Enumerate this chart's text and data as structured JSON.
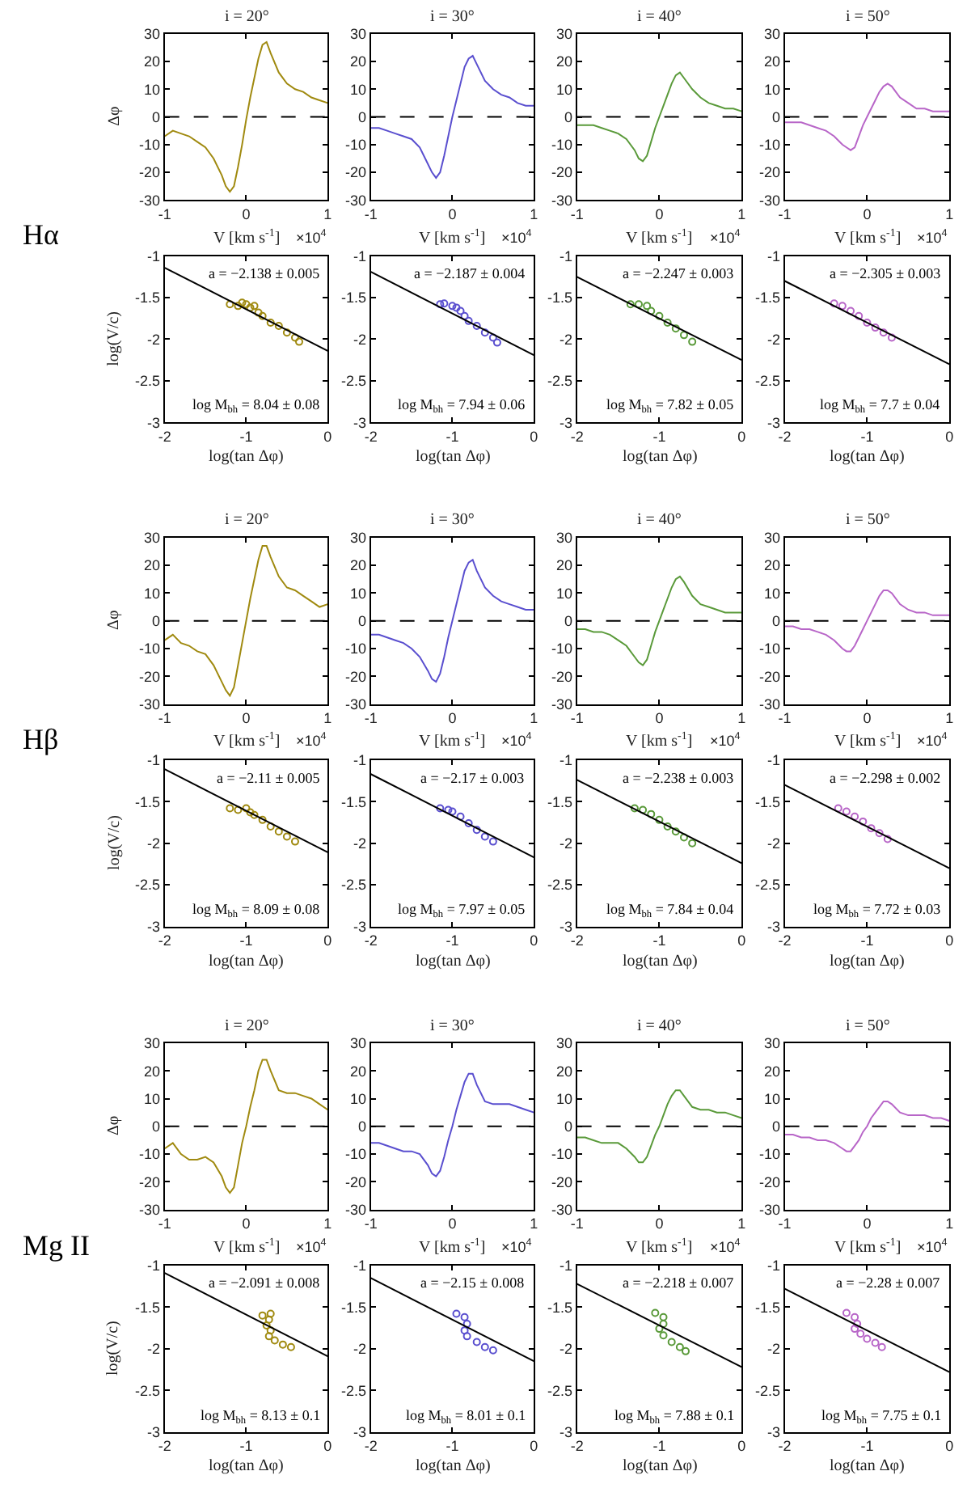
{
  "chart_data": [
    {
      "type": "line",
      "title": "i = 20°",
      "xlabel": "V [km s$^{-1}$]",
      "ylabel": "Δφ",
      "x": [
        -1,
        -0.9,
        -0.8,
        -0.7,
        -0.6,
        -0.5,
        -0.4,
        -0.3,
        -0.25,
        -0.2,
        -0.15,
        -0.1,
        -0.05,
        0,
        0.05,
        0.1,
        0.15,
        0.2,
        0.25,
        0.3,
        0.4,
        0.5,
        0.6,
        0.7,
        0.8,
        0.9,
        1
      ],
      "series": [
        {
          "color": "#a08a10",
          "values": [
            -7,
            -5,
            -6,
            -7,
            -9,
            -11,
            -15,
            -21,
            -25,
            -27,
            -25,
            -18,
            -10,
            -1,
            7,
            14,
            21,
            26,
            27,
            23,
            16,
            12,
            10,
            9,
            7,
            6,
            5
          ]
        }
      ],
      "xlim": [
        -1,
        1
      ],
      "ylim": [
        -30,
        30
      ],
      "xticks": [
        -1,
        0,
        1
      ],
      "yticks": [
        -30,
        -20,
        -10,
        0,
        10,
        20,
        30
      ],
      "ref_lines": [
        {
          "axis": "y",
          "value": 0,
          "color": "#000000",
          "line_style": "dashed"
        }
      ],
      "annotations": [
        "×10$^{4}$",
        "Hα"
      ]
    },
    {
      "type": "line",
      "title": "i = 30°",
      "xlabel": "V [km s$^{-1}$]",
      "x": [
        -1,
        -0.9,
        -0.8,
        -0.7,
        -0.6,
        -0.5,
        -0.4,
        -0.3,
        -0.25,
        -0.2,
        -0.15,
        -0.1,
        -0.05,
        0,
        0.05,
        0.1,
        0.15,
        0.2,
        0.25,
        0.3,
        0.4,
        0.5,
        0.6,
        0.7,
        0.8,
        0.9,
        1
      ],
      "series": [
        {
          "color": "#5a4fcf",
          "values": [
            -4,
            -4,
            -5,
            -6,
            -7,
            -8,
            -11,
            -17,
            -20,
            -22,
            -20,
            -14,
            -7,
            0,
            6,
            12,
            18,
            21,
            22,
            19,
            13,
            10,
            8,
            7,
            5,
            4,
            4
          ]
        }
      ],
      "xlim": [
        -1,
        1
      ],
      "ylim": [
        -30,
        30
      ],
      "xticks": [
        -1,
        0,
        1
      ],
      "yticks": [
        -30,
        -20,
        -10,
        0,
        10,
        20,
        30
      ],
      "ref_lines": [
        {
          "axis": "y",
          "value": 0,
          "color": "#000000",
          "line_style": "dashed"
        }
      ],
      "annotations": [
        "×10$^{4}$"
      ]
    },
    {
      "type": "line",
      "title": "i = 40°",
      "xlabel": "V [km s$^{-1}$]",
      "x": [
        -1,
        -0.9,
        -0.8,
        -0.7,
        -0.6,
        -0.5,
        -0.4,
        -0.3,
        -0.25,
        -0.2,
        -0.15,
        -0.1,
        -0.05,
        0,
        0.05,
        0.1,
        0.15,
        0.2,
        0.25,
        0.3,
        0.4,
        0.5,
        0.6,
        0.7,
        0.8,
        0.9,
        1
      ],
      "series": [
        {
          "color": "#5a9a3a",
          "values": [
            -3,
            -3,
            -3,
            -4,
            -5,
            -6,
            -8,
            -12,
            -15,
            -16,
            -14,
            -9,
            -4,
            0,
            4,
            8,
            12,
            15,
            16,
            14,
            10,
            7,
            5,
            4,
            3,
            3,
            2
          ]
        }
      ],
      "xlim": [
        -1,
        1
      ],
      "ylim": [
        -30,
        30
      ],
      "xticks": [
        -1,
        0,
        1
      ],
      "yticks": [
        -30,
        -20,
        -10,
        0,
        10,
        20,
        30
      ],
      "ref_lines": [
        {
          "axis": "y",
          "value": 0,
          "color": "#000000",
          "line_style": "dashed"
        }
      ],
      "annotations": [
        "×10$^{4}$"
      ]
    },
    {
      "type": "line",
      "title": "i = 50°",
      "xlabel": "V [km s$^{-1}$]",
      "x": [
        -1,
        -0.9,
        -0.8,
        -0.7,
        -0.6,
        -0.5,
        -0.4,
        -0.3,
        -0.25,
        -0.2,
        -0.15,
        -0.1,
        -0.05,
        0,
        0.05,
        0.1,
        0.15,
        0.2,
        0.25,
        0.3,
        0.4,
        0.5,
        0.6,
        0.7,
        0.8,
        0.9,
        1
      ],
      "series": [
        {
          "color": "#b866c8",
          "values": [
            -2,
            -2,
            -2,
            -3,
            -4,
            -5,
            -7,
            -10,
            -11,
            -12,
            -11,
            -7,
            -3,
            0,
            3,
            6,
            9,
            11,
            12,
            11,
            7,
            5,
            3,
            3,
            2,
            2,
            2
          ]
        }
      ],
      "xlim": [
        -1,
        1
      ],
      "ylim": [
        -30,
        30
      ],
      "xticks": [
        -1,
        0,
        1
      ],
      "yticks": [
        -30,
        -20,
        -10,
        0,
        10,
        20,
        30
      ],
      "ref_lines": [
        {
          "axis": "y",
          "value": 0,
          "color": "#000000",
          "line_style": "dashed"
        }
      ],
      "annotations": [
        "×10$^{4}$"
      ]
    },
    {
      "type": "scatter",
      "xlabel": "log(tan Δφ)",
      "ylabel": "log(V/c)",
      "series": [
        {
          "marker": "circle",
          "color": "#a08a10",
          "x": [
            -1.2,
            -1.1,
            -1.05,
            -1.0,
            -0.95,
            -0.9,
            -0.85,
            -0.8,
            -0.7,
            -0.6,
            -0.5,
            -0.4,
            -0.35
          ],
          "values": [
            -1.58,
            -1.6,
            -1.56,
            -1.58,
            -1.62,
            -1.6,
            -1.68,
            -1.72,
            -1.8,
            -1.84,
            -1.92,
            -1.98,
            -2.03
          ]
        },
        {
          "type": "line",
          "color": "#000000",
          "x": [
            -2,
            0
          ],
          "values": [
            -1.14,
            -2.14
          ]
        }
      ],
      "xlim": [
        -2,
        0
      ],
      "ylim": [
        -3,
        -1
      ],
      "xticks": [
        -2,
        -1,
        0
      ],
      "yticks": [
        -3,
        -2.5,
        -2,
        -1.5,
        -1
      ],
      "annotations": [
        "a = −2.138 ± 0.005",
        "log M$_{bh}$ = 8.04 ± 0.08"
      ]
    },
    {
      "type": "scatter",
      "xlabel": "log(tan Δφ)",
      "series": [
        {
          "marker": "circle",
          "color": "#5a4fcf",
          "x": [
            -1.15,
            -1.1,
            -1.0,
            -0.95,
            -0.9,
            -0.85,
            -0.8,
            -0.7,
            -0.6,
            -0.5,
            -0.45
          ],
          "values": [
            -1.58,
            -1.57,
            -1.6,
            -1.62,
            -1.66,
            -1.72,
            -1.78,
            -1.84,
            -1.92,
            -1.98,
            -2.04
          ]
        },
        {
          "type": "line",
          "color": "#000000",
          "x": [
            -2,
            0
          ],
          "values": [
            -1.19,
            -2.19
          ]
        }
      ],
      "xlim": [
        -2,
        0
      ],
      "ylim": [
        -3,
        -1
      ],
      "xticks": [
        -2,
        -1,
        0
      ],
      "yticks": [
        -3,
        -2.5,
        -2,
        -1.5,
        -1
      ],
      "annotations": [
        "a = −2.187 ± 0.004",
        "log M$_{bh}$ = 7.94 ± 0.06"
      ]
    },
    {
      "type": "scatter",
      "xlabel": "log(tan Δφ)",
      "series": [
        {
          "marker": "circle",
          "color": "#5a9a3a",
          "x": [
            -1.35,
            -1.25,
            -1.15,
            -1.1,
            -1.0,
            -0.9,
            -0.8,
            -0.7,
            -0.6
          ],
          "values": [
            -1.58,
            -1.58,
            -1.6,
            -1.66,
            -1.72,
            -1.8,
            -1.87,
            -1.95,
            -2.03
          ]
        },
        {
          "type": "line",
          "color": "#000000",
          "x": [
            -2,
            0
          ],
          "values": [
            -1.25,
            -2.25
          ]
        }
      ],
      "xlim": [
        -2,
        0
      ],
      "ylim": [
        -3,
        -1
      ],
      "xticks": [
        -2,
        -1,
        0
      ],
      "yticks": [
        -3,
        -2.5,
        -2,
        -1.5,
        -1
      ],
      "annotations": [
        "a = −2.247 ± 0.003",
        "log M$_{bh}$ = 7.82 ± 0.05"
      ]
    },
    {
      "type": "scatter",
      "xlabel": "log(tan Δφ)",
      "series": [
        {
          "marker": "circle",
          "color": "#b866c8",
          "x": [
            -1.4,
            -1.3,
            -1.2,
            -1.1,
            -1.0,
            -0.9,
            -0.8,
            -0.7
          ],
          "values": [
            -1.57,
            -1.6,
            -1.66,
            -1.72,
            -1.8,
            -1.86,
            -1.92,
            -1.98
          ]
        },
        {
          "type": "line",
          "color": "#000000",
          "x": [
            -2,
            0
          ],
          "values": [
            -1.3,
            -2.3
          ]
        }
      ],
      "xlim": [
        -2,
        0
      ],
      "ylim": [
        -3,
        -1
      ],
      "xticks": [
        -2,
        -1,
        0
      ],
      "yticks": [
        -3,
        -2.5,
        -2,
        -1.5,
        -1
      ],
      "annotations": [
        "a = −2.305 ± 0.003",
        "log M$_{bh}$ = 7.7 ± 0.04"
      ]
    },
    {
      "type": "line",
      "title": "i = 20°",
      "xlabel": "V [km s$^{-1}$]",
      "ylabel": "Δφ",
      "x": [
        -1,
        -0.9,
        -0.8,
        -0.7,
        -0.6,
        -0.5,
        -0.4,
        -0.3,
        -0.25,
        -0.2,
        -0.15,
        -0.1,
        -0.05,
        0,
        0.05,
        0.1,
        0.15,
        0.2,
        0.25,
        0.3,
        0.4,
        0.5,
        0.6,
        0.7,
        0.8,
        0.9,
        1
      ],
      "series": [
        {
          "color": "#a08a10",
          "values": [
            -7,
            -5,
            -8,
            -9,
            -11,
            -12,
            -16,
            -22,
            -25,
            -27,
            -24,
            -16,
            -8,
            0,
            8,
            15,
            22,
            27,
            27,
            23,
            16,
            12,
            11,
            9,
            7,
            5,
            6
          ]
        }
      ],
      "xlim": [
        -1,
        1
      ],
      "ylim": [
        -30,
        30
      ],
      "xticks": [
        -1,
        0,
        1
      ],
      "yticks": [
        -30,
        -20,
        -10,
        0,
        10,
        20,
        30
      ],
      "ref_lines": [
        {
          "axis": "y",
          "value": 0,
          "color": "#000000",
          "line_style": "dashed"
        }
      ],
      "annotations": [
        "×10$^{4}$",
        "Hβ"
      ]
    },
    {
      "type": "line",
      "title": "i = 30°",
      "xlabel": "V [km s$^{-1}$]",
      "x": [
        -1,
        -0.9,
        -0.8,
        -0.7,
        -0.6,
        -0.5,
        -0.4,
        -0.3,
        -0.25,
        -0.2,
        -0.15,
        -0.1,
        -0.05,
        0,
        0.05,
        0.1,
        0.15,
        0.2,
        0.25,
        0.3,
        0.4,
        0.5,
        0.6,
        0.7,
        0.8,
        0.9,
        1
      ],
      "series": [
        {
          "color": "#5a4fcf",
          "values": [
            -5,
            -5,
            -6,
            -7,
            -8,
            -10,
            -13,
            -18,
            -21,
            -22,
            -19,
            -13,
            -6,
            0,
            6,
            12,
            18,
            21,
            22,
            18,
            12,
            9,
            7,
            6,
            5,
            4,
            4
          ]
        }
      ],
      "xlim": [
        -1,
        1
      ],
      "ylim": [
        -30,
        30
      ],
      "xticks": [
        -1,
        0,
        1
      ],
      "yticks": [
        -30,
        -20,
        -10,
        0,
        10,
        20,
        30
      ],
      "ref_lines": [
        {
          "axis": "y",
          "value": 0,
          "color": "#000000",
          "line_style": "dashed"
        }
      ],
      "annotations": [
        "×10$^{4}$"
      ]
    },
    {
      "type": "line",
      "title": "i = 40°",
      "xlabel": "V [km s$^{-1}$]",
      "x": [
        -1,
        -0.9,
        -0.8,
        -0.7,
        -0.6,
        -0.5,
        -0.4,
        -0.3,
        -0.25,
        -0.2,
        -0.15,
        -0.1,
        -0.05,
        0,
        0.05,
        0.1,
        0.15,
        0.2,
        0.25,
        0.3,
        0.4,
        0.5,
        0.6,
        0.7,
        0.8,
        0.9,
        1
      ],
      "series": [
        {
          "color": "#5a9a3a",
          "values": [
            -3,
            -3,
            -4,
            -4,
            -5,
            -7,
            -9,
            -13,
            -15,
            -16,
            -14,
            -9,
            -4,
            0,
            4,
            8,
            12,
            15,
            16,
            14,
            9,
            6,
            5,
            4,
            3,
            3,
            3
          ]
        }
      ],
      "xlim": [
        -1,
        1
      ],
      "ylim": [
        -30,
        30
      ],
      "xticks": [
        -1,
        0,
        1
      ],
      "yticks": [
        -30,
        -20,
        -10,
        0,
        10,
        20,
        30
      ],
      "ref_lines": [
        {
          "axis": "y",
          "value": 0,
          "color": "#000000",
          "line_style": "dashed"
        }
      ],
      "annotations": [
        "×10$^{4}$"
      ]
    },
    {
      "type": "line",
      "title": "i = 50°",
      "xlabel": "V [km s$^{-1}$]",
      "x": [
        -1,
        -0.9,
        -0.8,
        -0.7,
        -0.6,
        -0.5,
        -0.4,
        -0.3,
        -0.25,
        -0.2,
        -0.15,
        -0.1,
        -0.05,
        0,
        0.05,
        0.1,
        0.15,
        0.2,
        0.25,
        0.3,
        0.4,
        0.5,
        0.6,
        0.7,
        0.8,
        0.9,
        1
      ],
      "series": [
        {
          "color": "#b866c8",
          "values": [
            -2,
            -2,
            -3,
            -3,
            -4,
            -5,
            -7,
            -10,
            -11,
            -11,
            -9,
            -6,
            -3,
            0,
            3,
            6,
            9,
            11,
            11,
            10,
            6,
            4,
            3,
            3,
            2,
            2,
            2
          ]
        }
      ],
      "xlim": [
        -1,
        1
      ],
      "ylim": [
        -30,
        30
      ],
      "xticks": [
        -1,
        0,
        1
      ],
      "yticks": [
        -30,
        -20,
        -10,
        0,
        10,
        20,
        30
      ],
      "ref_lines": [
        {
          "axis": "y",
          "value": 0,
          "color": "#000000",
          "line_style": "dashed"
        }
      ],
      "annotations": [
        "×10$^{4}$"
      ]
    },
    {
      "type": "scatter",
      "xlabel": "log(tan Δφ)",
      "ylabel": "log(V/c)",
      "series": [
        {
          "marker": "circle",
          "color": "#a08a10",
          "x": [
            -1.2,
            -1.1,
            -1.0,
            -0.95,
            -0.9,
            -0.8,
            -0.7,
            -0.6,
            -0.5,
            -0.4
          ],
          "values": [
            -1.58,
            -1.6,
            -1.58,
            -1.63,
            -1.66,
            -1.72,
            -1.8,
            -1.86,
            -1.92,
            -1.98
          ]
        },
        {
          "type": "line",
          "color": "#000000",
          "x": [
            -2,
            0
          ],
          "values": [
            -1.11,
            -2.11
          ]
        }
      ],
      "xlim": [
        -2,
        0
      ],
      "ylim": [
        -3,
        -1
      ],
      "xticks": [
        -2,
        -1,
        0
      ],
      "yticks": [
        -3,
        -2.5,
        -2,
        -1.5,
        -1
      ],
      "annotations": [
        "a = −2.11 ± 0.005",
        "log M$_{bh}$ = 8.09 ± 0.08"
      ]
    },
    {
      "type": "scatter",
      "xlabel": "log(tan Δφ)",
      "series": [
        {
          "marker": "circle",
          "color": "#5a4fcf",
          "x": [
            -1.15,
            -1.05,
            -1.0,
            -0.9,
            -0.8,
            -0.7,
            -0.6,
            -0.5
          ],
          "values": [
            -1.58,
            -1.6,
            -1.62,
            -1.68,
            -1.76,
            -1.84,
            -1.92,
            -1.98
          ]
        },
        {
          "type": "line",
          "color": "#000000",
          "x": [
            -2,
            0
          ],
          "values": [
            -1.17,
            -2.17
          ]
        }
      ],
      "xlim": [
        -2,
        0
      ],
      "ylim": [
        -3,
        -1
      ],
      "xticks": [
        -2,
        -1,
        0
      ],
      "yticks": [
        -3,
        -2.5,
        -2,
        -1.5,
        -1
      ],
      "annotations": [
        "a = −2.17 ± 0.003",
        "log M$_{bh}$ = 7.97 ± 0.05"
      ]
    },
    {
      "type": "scatter",
      "xlabel": "log(tan Δφ)",
      "series": [
        {
          "marker": "circle",
          "color": "#5a9a3a",
          "x": [
            -1.3,
            -1.2,
            -1.1,
            -1.0,
            -0.9,
            -0.8,
            -0.7,
            -0.6
          ],
          "values": [
            -1.58,
            -1.6,
            -1.65,
            -1.72,
            -1.8,
            -1.86,
            -1.93,
            -2.0
          ]
        },
        {
          "type": "line",
          "color": "#000000",
          "x": [
            -2,
            0
          ],
          "values": [
            -1.24,
            -2.24
          ]
        }
      ],
      "xlim": [
        -2,
        0
      ],
      "ylim": [
        -3,
        -1
      ],
      "xticks": [
        -2,
        -1,
        0
      ],
      "yticks": [
        -3,
        -2.5,
        -2,
        -1.5,
        -1
      ],
      "annotations": [
        "a = −2.238 ± 0.003",
        "log M$_{bh}$ = 7.84 ± 0.04"
      ]
    },
    {
      "type": "scatter",
      "xlabel": "log(tan Δφ)",
      "series": [
        {
          "marker": "circle",
          "color": "#b866c8",
          "x": [
            -1.35,
            -1.25,
            -1.15,
            -1.05,
            -0.95,
            -0.85,
            -0.75
          ],
          "values": [
            -1.58,
            -1.62,
            -1.68,
            -1.74,
            -1.82,
            -1.88,
            -1.95
          ]
        },
        {
          "type": "line",
          "color": "#000000",
          "x": [
            -2,
            0
          ],
          "values": [
            -1.3,
            -2.3
          ]
        }
      ],
      "xlim": [
        -2,
        0
      ],
      "ylim": [
        -3,
        -1
      ],
      "xticks": [
        -2,
        -1,
        0
      ],
      "yticks": [
        -3,
        -2.5,
        -2,
        -1.5,
        -1
      ],
      "annotations": [
        "a = −2.298 ± 0.002",
        "log M$_{bh}$ = 7.72 ± 0.03"
      ]
    },
    {
      "type": "line",
      "title": "i = 20°",
      "xlabel": "V [km s$^{-1}$]",
      "ylabel": "Δφ",
      "x": [
        -1,
        -0.9,
        -0.8,
        -0.7,
        -0.6,
        -0.5,
        -0.4,
        -0.3,
        -0.25,
        -0.2,
        -0.15,
        -0.1,
        -0.05,
        0,
        0.05,
        0.1,
        0.15,
        0.2,
        0.25,
        0.3,
        0.4,
        0.5,
        0.6,
        0.7,
        0.8,
        0.9,
        1
      ],
      "series": [
        {
          "color": "#a08a10",
          "values": [
            -8,
            -6,
            -10,
            -12,
            -12,
            -11,
            -13,
            -18,
            -22,
            -24,
            -22,
            -14,
            -6,
            0,
            7,
            13,
            20,
            24,
            24,
            20,
            13,
            12,
            12,
            11,
            10,
            8,
            6
          ]
        }
      ],
      "xlim": [
        -1,
        1
      ],
      "ylim": [
        -30,
        30
      ],
      "xticks": [
        -1,
        0,
        1
      ],
      "yticks": [
        -30,
        -20,
        -10,
        0,
        10,
        20,
        30
      ],
      "ref_lines": [
        {
          "axis": "y",
          "value": 0,
          "color": "#000000",
          "line_style": "dashed"
        }
      ],
      "annotations": [
        "×10$^{4}$",
        "Mg II"
      ]
    },
    {
      "type": "line",
      "title": "i = 30°",
      "xlabel": "V [km s$^{-1}$]",
      "x": [
        -1,
        -0.9,
        -0.8,
        -0.7,
        -0.6,
        -0.5,
        -0.4,
        -0.3,
        -0.25,
        -0.2,
        -0.15,
        -0.1,
        -0.05,
        0,
        0.05,
        0.1,
        0.15,
        0.2,
        0.25,
        0.3,
        0.4,
        0.5,
        0.6,
        0.7,
        0.8,
        0.9,
        1
      ],
      "series": [
        {
          "color": "#5a4fcf",
          "values": [
            -6,
            -6,
            -7,
            -8,
            -9,
            -9,
            -10,
            -14,
            -17,
            -18,
            -16,
            -11,
            -5,
            0,
            6,
            11,
            16,
            19,
            19,
            15,
            9,
            8,
            8,
            8,
            7,
            6,
            5
          ]
        }
      ],
      "xlim": [
        -1,
        1
      ],
      "ylim": [
        -30,
        30
      ],
      "xticks": [
        -1,
        0,
        1
      ],
      "yticks": [
        -30,
        -20,
        -10,
        0,
        10,
        20,
        30
      ],
      "ref_lines": [
        {
          "axis": "y",
          "value": 0,
          "color": "#000000",
          "line_style": "dashed"
        }
      ],
      "annotations": [
        "×10$^{4}$"
      ]
    },
    {
      "type": "line",
      "title": "i = 40°",
      "xlabel": "V [km s$^{-1}$]",
      "x": [
        -1,
        -0.9,
        -0.8,
        -0.7,
        -0.6,
        -0.5,
        -0.4,
        -0.3,
        -0.25,
        -0.2,
        -0.15,
        -0.1,
        -0.05,
        0,
        0.05,
        0.1,
        0.15,
        0.2,
        0.25,
        0.3,
        0.4,
        0.5,
        0.6,
        0.7,
        0.8,
        0.9,
        1
      ],
      "series": [
        {
          "color": "#5a9a3a",
          "values": [
            -4,
            -4,
            -5,
            -6,
            -6,
            -6,
            -8,
            -11,
            -13,
            -13,
            -11,
            -7,
            -3,
            0,
            4,
            8,
            11,
            13,
            13,
            11,
            7,
            6,
            6,
            5,
            5,
            4,
            3
          ]
        }
      ],
      "xlim": [
        -1,
        1
      ],
      "ylim": [
        -30,
        30
      ],
      "xticks": [
        -1,
        0,
        1
      ],
      "yticks": [
        -30,
        -20,
        -10,
        0,
        10,
        20,
        30
      ],
      "ref_lines": [
        {
          "axis": "y",
          "value": 0,
          "color": "#000000",
          "line_style": "dashed"
        }
      ],
      "annotations": [
        "×10$^{4}$"
      ]
    },
    {
      "type": "line",
      "title": "i = 50°",
      "xlabel": "V [km s$^{-1}$]",
      "x": [
        -1,
        -0.9,
        -0.8,
        -0.7,
        -0.6,
        -0.5,
        -0.4,
        -0.3,
        -0.25,
        -0.2,
        -0.15,
        -0.1,
        -0.05,
        0,
        0.05,
        0.1,
        0.15,
        0.2,
        0.25,
        0.3,
        0.4,
        0.5,
        0.6,
        0.7,
        0.8,
        0.9,
        1
      ],
      "series": [
        {
          "color": "#b866c8",
          "values": [
            -3,
            -3,
            -4,
            -4,
            -5,
            -5,
            -6,
            -8,
            -9,
            -9,
            -7,
            -5,
            -2,
            0,
            3,
            5,
            7,
            9,
            9,
            8,
            5,
            4,
            4,
            4,
            3,
            3,
            2
          ]
        }
      ],
      "xlim": [
        -1,
        1
      ],
      "ylim": [
        -30,
        30
      ],
      "xticks": [
        -1,
        0,
        1
      ],
      "yticks": [
        -30,
        -20,
        -10,
        0,
        10,
        20,
        30
      ],
      "ref_lines": [
        {
          "axis": "y",
          "value": 0,
          "color": "#000000",
          "line_style": "dashed"
        }
      ],
      "annotations": [
        "×10$^{4}$"
      ]
    },
    {
      "type": "scatter",
      "xlabel": "log(tan Δφ)",
      "ylabel": "log(V/c)",
      "series": [
        {
          "marker": "circle",
          "color": "#a08a10",
          "x": [
            -0.8,
            -0.7,
            -0.72,
            -0.75,
            -0.7,
            -0.72,
            -0.65,
            -0.55,
            -0.45
          ],
          "values": [
            -1.6,
            -1.58,
            -1.65,
            -1.72,
            -1.78,
            -1.85,
            -1.9,
            -1.95,
            -1.98
          ]
        },
        {
          "type": "line",
          "color": "#000000",
          "x": [
            -2,
            0
          ],
          "values": [
            -1.09,
            -2.09
          ]
        }
      ],
      "xlim": [
        -2,
        0
      ],
      "ylim": [
        -3,
        -1
      ],
      "xticks": [
        -2,
        -1,
        0
      ],
      "yticks": [
        -3,
        -2.5,
        -2,
        -1.5,
        -1
      ],
      "annotations": [
        "a = −2.091 ± 0.008",
        "log M$_{bh}$ = 8.13 ± 0.1"
      ]
    },
    {
      "type": "scatter",
      "xlabel": "log(tan Δφ)",
      "series": [
        {
          "marker": "circle",
          "color": "#5a4fcf",
          "x": [
            -0.95,
            -0.85,
            -0.82,
            -0.85,
            -0.82,
            -0.7,
            -0.6,
            -0.5
          ],
          "values": [
            -1.58,
            -1.62,
            -1.7,
            -1.78,
            -1.85,
            -1.92,
            -1.98,
            -2.02
          ]
        },
        {
          "type": "line",
          "color": "#000000",
          "x": [
            -2,
            0
          ],
          "values": [
            -1.15,
            -2.15
          ]
        }
      ],
      "xlim": [
        -2,
        0
      ],
      "ylim": [
        -3,
        -1
      ],
      "xticks": [
        -2,
        -1,
        0
      ],
      "yticks": [
        -3,
        -2.5,
        -2,
        -1.5,
        -1
      ],
      "annotations": [
        "a = −2.15 ± 0.008",
        "log M$_{bh}$ = 8.01 ± 0.1"
      ]
    },
    {
      "type": "scatter",
      "xlabel": "log(tan Δφ)",
      "series": [
        {
          "marker": "circle",
          "color": "#5a9a3a",
          "x": [
            -1.05,
            -0.95,
            -0.95,
            -1.0,
            -0.95,
            -0.85,
            -0.75,
            -0.68
          ],
          "values": [
            -1.57,
            -1.62,
            -1.7,
            -1.76,
            -1.84,
            -1.92,
            -1.98,
            -2.03
          ]
        },
        {
          "type": "line",
          "color": "#000000",
          "x": [
            -2,
            0
          ],
          "values": [
            -1.22,
            -2.22
          ]
        }
      ],
      "xlim": [
        -2,
        0
      ],
      "ylim": [
        -3,
        -1
      ],
      "xticks": [
        -2,
        -1,
        0
      ],
      "yticks": [
        -3,
        -2.5,
        -2,
        -1.5,
        -1
      ],
      "annotations": [
        "a = −2.218 ± 0.007",
        "log M$_{bh}$ = 7.88 ± 0.1"
      ]
    },
    {
      "type": "scatter",
      "xlabel": "log(tan Δφ)",
      "series": [
        {
          "marker": "circle",
          "color": "#b866c8",
          "x": [
            -1.25,
            -1.15,
            -1.12,
            -1.15,
            -1.08,
            -1.0,
            -0.9,
            -0.82
          ],
          "values": [
            -1.57,
            -1.62,
            -1.7,
            -1.76,
            -1.82,
            -1.88,
            -1.93,
            -1.98
          ]
        },
        {
          "type": "line",
          "color": "#000000",
          "x": [
            -2,
            0
          ],
          "values": [
            -1.28,
            -2.28
          ]
        }
      ],
      "xlim": [
        -2,
        0
      ],
      "ylim": [
        -3,
        -1
      ],
      "xticks": [
        -2,
        -1,
        0
      ],
      "yticks": [
        -3,
        -2.5,
        -2,
        -1.5,
        -1
      ],
      "annotations": [
        "a = −2.28 ± 0.007",
        "log M$_{bh}$ = 7.75 ± 0.1"
      ]
    }
  ]
}
